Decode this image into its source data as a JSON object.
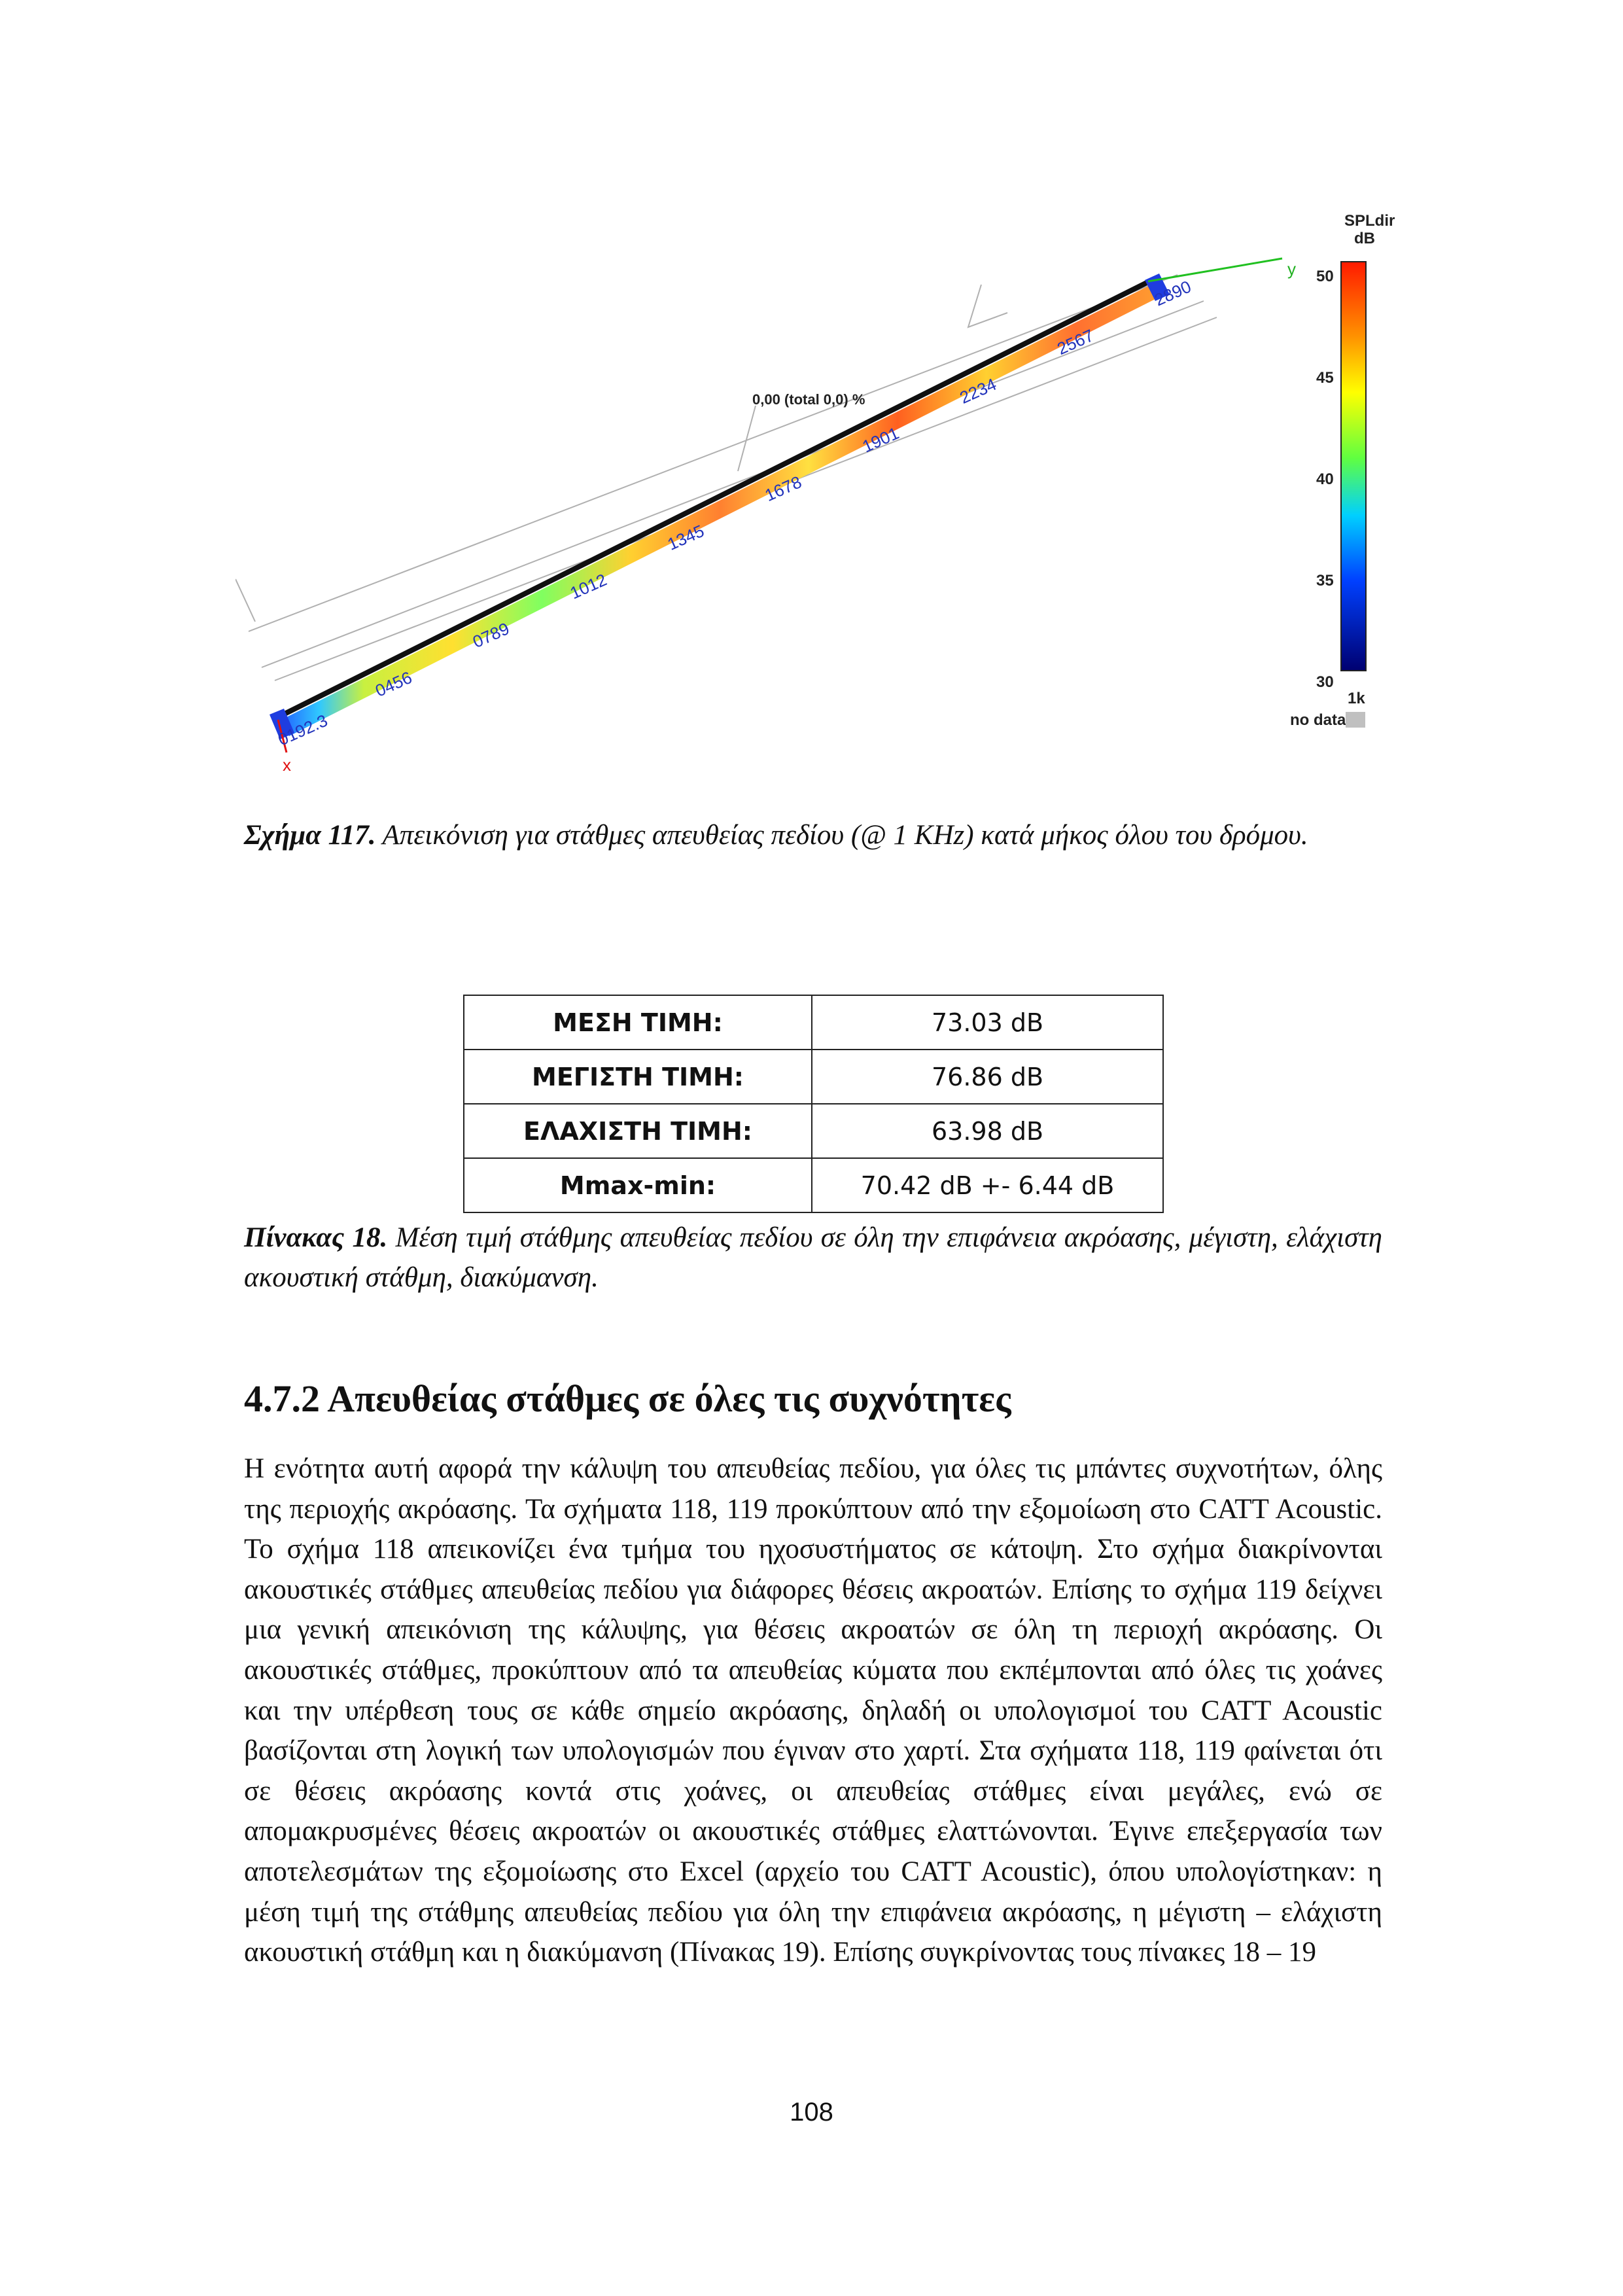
{
  "figure": {
    "annotation": "0,00 (total 0,0) %",
    "axis_x": "x",
    "axis_y": "y",
    "receiver_labels": [
      "0192.3",
      "0456",
      "0789",
      "1012",
      "1345",
      "1678",
      "1901",
      "2234",
      "2567",
      "2890"
    ],
    "colorbar": {
      "title": "SPLdir",
      "unit": "dB",
      "ticks": [
        "50",
        "45",
        "40",
        "35",
        "30"
      ],
      "band": "1k",
      "nodata_label": "no data:",
      "nodata_color": "#c0c0c0"
    }
  },
  "figure_caption": {
    "label": "Σχήμα 117.",
    "text": "Απεικόνιση για στάθμες απευθείας πεδίου (@ 1 KHz) κατά μήκος όλου του δρόμου."
  },
  "table": {
    "rows": [
      {
        "key": "ΜΕΣΗ ΤΙΜΗ:",
        "value": "73.03 dB"
      },
      {
        "key": "ΜΕΓΙΣΤΗ ΤΙΜΗ:",
        "value": "76.86 dB"
      },
      {
        "key": "ΕΛΑΧΙΣΤΗ ΤΙΜΗ:",
        "value": "63.98 dB"
      },
      {
        "key": "Mmax-min:",
        "value": "70.42 dB +- 6.44 dB"
      }
    ]
  },
  "table_caption": {
    "label": "Πίνακας 18.",
    "text": "Μέση τιμή στάθμης απευθείας πεδίου σε όλη την επιφάνεια ακρόασης, μέγιστη, ελάχιστη ακουστική στάθμη, διακύμανση."
  },
  "section": {
    "heading": "4.7.2 Απευθείας στάθμες σε όλες τις συχνότητες",
    "body": "Η ενότητα αυτή αφορά την κάλυψη του απευθείας πεδίου, για όλες τις μπάντες συχνοτήτων, όλης της περιοχής ακρόασης. Τα σχήματα 118, 119 προκύπτουν από την εξομοίωση στο CATT Acoustic. Το σχήμα 118 απεικονίζει ένα τμήμα του ηχοσυστήματος σε κάτοψη. Στο σχήμα διακρίνονται ακουστικές στάθμες απευθείας πεδίου για διάφορες θέσεις ακροατών. Επίσης το σχήμα 119 δείχνει μια γενική απεικόνιση της κάλυψης, για θέσεις ακροατών σε όλη τη περιοχή ακρόασης. Οι ακουστικές στάθμες, προκύπτουν από τα απευθείας κύματα που εκπέμπονται από όλες τις χοάνες και την υπέρθεση τους σε κάθε σημείο ακρόασης, δηλαδή οι υπολογισμοί του CATT Acoustic βασίζονται στη λογική των υπολογισμών που έγιναν στο χαρτί. Στα σχήματα 118, 119 φαίνεται ότι σε θέσεις ακρόασης κοντά στις χοάνες, οι απευθείας στάθμες είναι μεγάλες, ενώ σε απομακρυσμένες θέσεις ακροατών οι ακουστικές στάθμες ελαττώνονται. Έγινε επεξεργασία των αποτελεσμάτων της εξομοίωσης στο Excel (αρχείο του CATT Acoustic), όπου υπολογίστηκαν: η μέση τιμή της στάθμης απευθείας πεδίου για όλη την επιφάνεια ακρόασης, η μέγιστη – ελάχιστη ακουστική στάθμη και η διακύμανση (Πίνακας 19). Επίσης συγκρίνοντας τους πίνακες 18 – 19"
  },
  "page_number": "108"
}
